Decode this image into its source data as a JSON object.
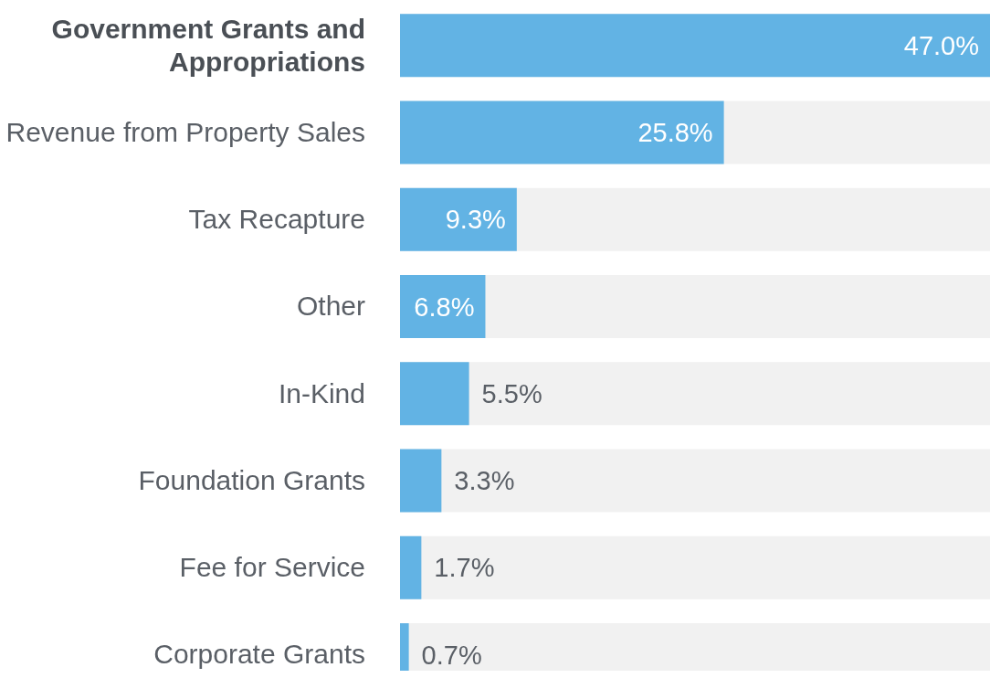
{
  "chart_data": {
    "type": "bar",
    "orientation": "horizontal",
    "categories": [
      "Government Grants and Appropriations",
      "Revenue from Property Sales",
      "Tax Recapture",
      "Other",
      "In-Kind",
      "Foundation Grants",
      "Fee for Service",
      "Corporate Grants"
    ],
    "values": [
      47.0,
      25.8,
      9.3,
      6.8,
      5.5,
      3.3,
      1.7,
      0.7
    ],
    "value_labels": [
      "47.0%",
      "25.8%",
      "9.3%",
      "6.8%",
      "5.5%",
      "3.3%",
      "1.7%",
      "0.7%"
    ],
    "color": "#62b3e4"
  }
}
